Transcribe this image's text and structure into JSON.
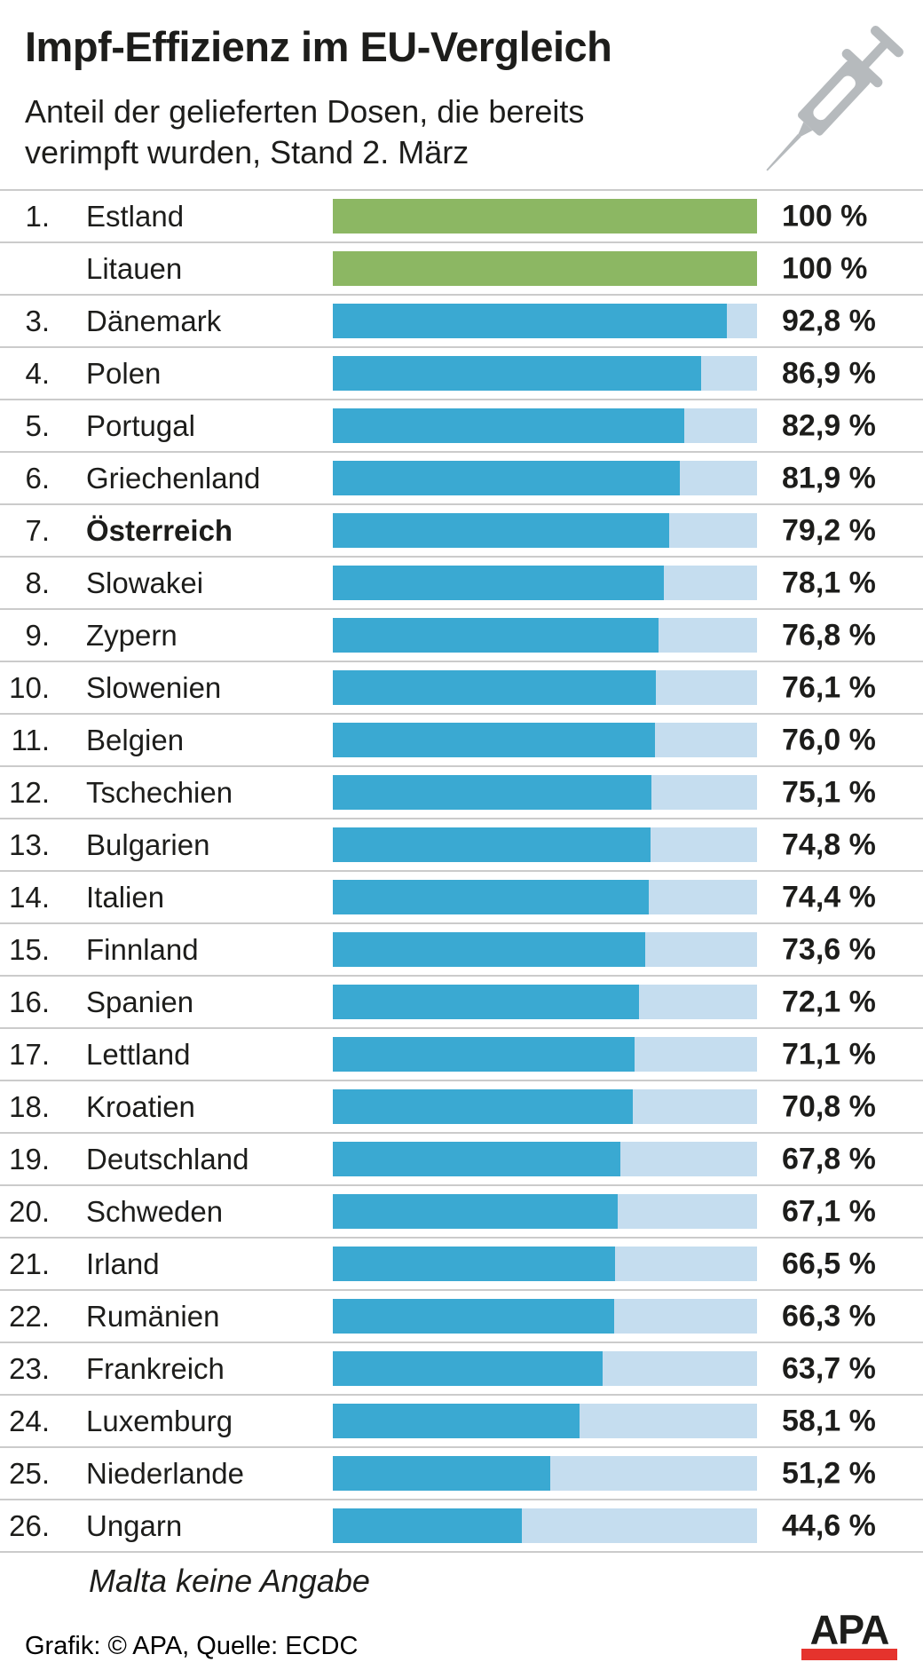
{
  "header": {
    "title": "Impf-Effizienz im EU-Vergleich",
    "subtitle_line1": "Anteil der gelieferten Dosen, die bereits",
    "subtitle_line2": "verimpft wurden, Stand 2. März"
  },
  "colors": {
    "green": "#8cb763",
    "blue": "#3aa9d2",
    "light_blue": "#c5ddef",
    "divider_gray": "#cbcbcb",
    "syringe_gray": "#b6babd",
    "apa_red": "#e5332d",
    "text_black": "#1d1d1b"
  },
  "icons": {
    "syringe": "syringe-icon"
  },
  "chart_data": {
    "type": "bar",
    "orientation": "horizontal",
    "unit": "%",
    "max": 100,
    "title": "Impf-Effizienz im EU-Vergleich",
    "subtitle": "Anteil der gelieferten Dosen, die bereits verimpft wurden, Stand 2. März",
    "rows": [
      {
        "rank": "1.",
        "country": "Estland",
        "value": 100,
        "label": "100 %",
        "color": "green",
        "bold": false
      },
      {
        "rank": "",
        "country": "Litauen",
        "value": 100,
        "label": "100 %",
        "color": "green",
        "bold": false
      },
      {
        "rank": "3.",
        "country": "Dänemark",
        "value": 92.8,
        "label": "92,8 %",
        "color": "blue",
        "bold": false
      },
      {
        "rank": "4.",
        "country": "Polen",
        "value": 86.9,
        "label": "86,9 %",
        "color": "blue",
        "bold": false
      },
      {
        "rank": "5.",
        "country": "Portugal",
        "value": 82.9,
        "label": "82,9 %",
        "color": "blue",
        "bold": false
      },
      {
        "rank": "6.",
        "country": "Griechenland",
        "value": 81.9,
        "label": "81,9 %",
        "color": "blue",
        "bold": false
      },
      {
        "rank": "7.",
        "country": "Österreich",
        "value": 79.2,
        "label": "79,2 %",
        "color": "blue",
        "bold": true
      },
      {
        "rank": "8.",
        "country": "Slowakei",
        "value": 78.1,
        "label": "78,1 %",
        "color": "blue",
        "bold": false
      },
      {
        "rank": "9.",
        "country": "Zypern",
        "value": 76.8,
        "label": "76,8 %",
        "color": "blue",
        "bold": false
      },
      {
        "rank": "10.",
        "country": "Slowenien",
        "value": 76.1,
        "label": "76,1 %",
        "color": "blue",
        "bold": false
      },
      {
        "rank": "11.",
        "country": "Belgien",
        "value": 76.0,
        "label": "76,0 %",
        "color": "blue",
        "bold": false
      },
      {
        "rank": "12.",
        "country": "Tschechien",
        "value": 75.1,
        "label": "75,1 %",
        "color": "blue",
        "bold": false
      },
      {
        "rank": "13.",
        "country": "Bulgarien",
        "value": 74.8,
        "label": "74,8 %",
        "color": "blue",
        "bold": false
      },
      {
        "rank": "14.",
        "country": "Italien",
        "value": 74.4,
        "label": "74,4 %",
        "color": "blue",
        "bold": false
      },
      {
        "rank": "15.",
        "country": "Finnland",
        "value": 73.6,
        "label": "73,6 %",
        "color": "blue",
        "bold": false
      },
      {
        "rank": "16.",
        "country": "Spanien",
        "value": 72.1,
        "label": "72,1 %",
        "color": "blue",
        "bold": false
      },
      {
        "rank": "17.",
        "country": "Lettland",
        "value": 71.1,
        "label": "71,1 %",
        "color": "blue",
        "bold": false
      },
      {
        "rank": "18.",
        "country": "Kroatien",
        "value": 70.8,
        "label": "70,8 %",
        "color": "blue",
        "bold": false
      },
      {
        "rank": "19.",
        "country": "Deutschland",
        "value": 67.8,
        "label": "67,8 %",
        "color": "blue",
        "bold": false
      },
      {
        "rank": "20.",
        "country": "Schweden",
        "value": 67.1,
        "label": "67,1 %",
        "color": "blue",
        "bold": false
      },
      {
        "rank": "21.",
        "country": "Irland",
        "value": 66.5,
        "label": "66,5 %",
        "color": "blue",
        "bold": false
      },
      {
        "rank": "22.",
        "country": "Rumänien",
        "value": 66.3,
        "label": "66,3 %",
        "color": "blue",
        "bold": false
      },
      {
        "rank": "23.",
        "country": "Frankreich",
        "value": 63.7,
        "label": "63,7 %",
        "color": "blue",
        "bold": false
      },
      {
        "rank": "24.",
        "country": "Luxemburg",
        "value": 58.1,
        "label": "58,1 %",
        "color": "blue",
        "bold": false
      },
      {
        "rank": "25.",
        "country": "Niederlande",
        "value": 51.2,
        "label": "51,2 %",
        "color": "blue",
        "bold": false
      },
      {
        "rank": "26.",
        "country": "Ungarn",
        "value": 44.6,
        "label": "44,6 %",
        "color": "blue",
        "bold": false
      }
    ],
    "note": "Malta keine Angabe"
  },
  "footer": {
    "credit": "Grafik: © APA, Quelle: ECDC",
    "logo_text": "APA"
  }
}
